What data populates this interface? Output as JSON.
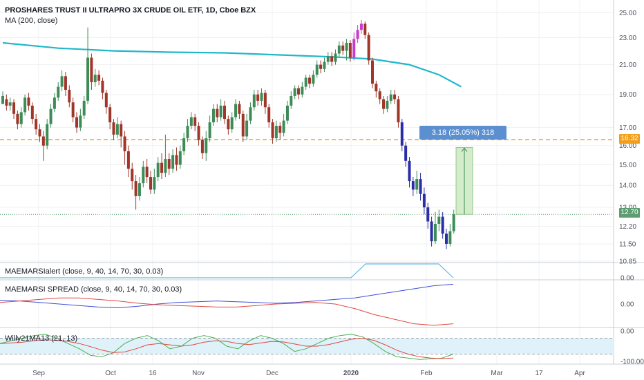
{
  "header": {
    "title": "PROSHARES TRUST II ULTRAPRO 3X CRUDE OIL ETF, 1D, Cboe BZX",
    "ma_label": "MA (200, close)"
  },
  "colors": {
    "up": "#3d8c57",
    "down": "#a0352a",
    "highlight_up": "#c83dc8",
    "highlight_down": "#2a2fa8",
    "ma": "#20b7c9",
    "level_line": "#f29f1c",
    "measure_fill": "#d4ecc9",
    "measure_label": "#5b8fd0",
    "current_price_badge": "#5e9c72",
    "level_badge": "#f29f1c"
  },
  "price_axis": {
    "ticks": [
      "25.00",
      "23.00",
      "21.00",
      "19.00",
      "17.00",
      "16.00",
      "15.00",
      "14.00",
      "13.00",
      "12.20",
      "11.50",
      "10.85"
    ],
    "level_badge": "16.32",
    "current_badge": "12.70",
    "scale": "log"
  },
  "time_axis": {
    "labels": [
      "Sep",
      "Oct",
      "16",
      "Nov",
      "Dec",
      "2020",
      "Feb",
      "Mar",
      "17",
      "Apr"
    ]
  },
  "measure": {
    "label": "3.18 (25.05%) 318"
  },
  "panes": {
    "alert": {
      "label": "MAEMARSIalert (close, 9, 40, 14, 70, 30, 0.03)",
      "tick": "0.00"
    },
    "spread": {
      "label": "MAEMARSI SPREAD (close, 9, 40, 14, 70, 30, 0.03)",
      "tick": "0.00"
    },
    "willy": {
      "label": "Willy21MA13 (21, 13)",
      "ticks": [
        "0.00",
        "-100.00"
      ]
    }
  },
  "chart_data": [
    {
      "type": "candlestick",
      "title": "PROSHARES TRUST II ULTRAPRO 3X CRUDE OIL ETF, 1D, Cboe BZX",
      "y_scale": "log",
      "ylim": [
        10.85,
        25.5
      ],
      "x_labels": [
        "Sep",
        "Oct",
        "16",
        "Nov",
        "Dec",
        "2020",
        "Feb",
        "Mar",
        "17",
        "Apr"
      ],
      "candles": [
        [
          18.4,
          18.9,
          18.6,
          19.2
        ],
        [
          18.7,
          18.3,
          19.0,
          18.0
        ],
        [
          18.3,
          18.5,
          18.8,
          18.0
        ],
        [
          18.5,
          17.8,
          18.7,
          17.5
        ],
        [
          17.8,
          17.2,
          18.0,
          16.9
        ],
        [
          17.2,
          17.9,
          18.2,
          17.0
        ],
        [
          17.9,
          18.8,
          19.0,
          17.7
        ],
        [
          18.8,
          18.3,
          19.1,
          18.0
        ],
        [
          18.3,
          17.5,
          18.5,
          17.2
        ],
        [
          17.5,
          16.9,
          17.8,
          16.6
        ],
        [
          16.9,
          16.5,
          17.2,
          16.2
        ],
        [
          16.5,
          16.0,
          16.8,
          15.2
        ],
        [
          16.0,
          17.2,
          17.5,
          15.8
        ],
        [
          17.2,
          18.1,
          18.4,
          17.0
        ],
        [
          18.1,
          18.8,
          19.1,
          17.9
        ],
        [
          18.8,
          19.5,
          19.8,
          18.6
        ],
        [
          19.5,
          20.2,
          20.6,
          19.2
        ],
        [
          20.2,
          19.3,
          20.5,
          18.9
        ],
        [
          19.3,
          18.5,
          19.6,
          18.2
        ],
        [
          18.5,
          17.6,
          18.8,
          17.3
        ],
        [
          17.6,
          17.0,
          17.9,
          16.7
        ],
        [
          17.0,
          17.7,
          18.1,
          16.8
        ],
        [
          17.7,
          18.6,
          18.9,
          17.5
        ],
        [
          18.6,
          21.5,
          23.8,
          18.4
        ],
        [
          21.5,
          19.8,
          21.8,
          19.3
        ],
        [
          19.8,
          20.3,
          20.7,
          19.5
        ],
        [
          20.3,
          19.9,
          20.6,
          19.6
        ],
        [
          19.9,
          19.1,
          20.1,
          18.7
        ],
        [
          19.1,
          18.2,
          19.3,
          17.8
        ],
        [
          18.2,
          17.3,
          18.4,
          16.9
        ],
        [
          17.3,
          16.6,
          17.5,
          16.3
        ],
        [
          16.6,
          17.2,
          17.6,
          16.4
        ],
        [
          17.2,
          16.5,
          17.4,
          15.9
        ],
        [
          16.5,
          15.7,
          16.8,
          15.0
        ],
        [
          15.7,
          14.8,
          16.0,
          14.4
        ],
        [
          14.8,
          14.2,
          15.1,
          13.8
        ],
        [
          14.2,
          13.5,
          14.5,
          12.9
        ],
        [
          13.5,
          14.1,
          14.4,
          13.3
        ],
        [
          14.1,
          14.9,
          15.2,
          13.9
        ],
        [
          14.9,
          14.4,
          15.3,
          14.1
        ],
        [
          14.4,
          13.8,
          14.7,
          13.6
        ],
        [
          13.8,
          14.4,
          14.8,
          13.6
        ],
        [
          14.4,
          15.1,
          15.4,
          14.2
        ],
        [
          15.1,
          14.6,
          15.6,
          14.3
        ],
        [
          14.6,
          15.3,
          16.6,
          14.4
        ],
        [
          15.3,
          14.8,
          15.6,
          14.5
        ],
        [
          14.8,
          15.5,
          15.8,
          14.6
        ],
        [
          15.5,
          15.0,
          15.9,
          14.7
        ],
        [
          15.0,
          15.7,
          16.0,
          14.8
        ],
        [
          15.7,
          16.4,
          16.7,
          15.5
        ],
        [
          16.4,
          17.1,
          17.5,
          16.2
        ],
        [
          17.1,
          17.6,
          17.9,
          16.9
        ],
        [
          17.6,
          17.1,
          17.8,
          16.8
        ],
        [
          17.1,
          16.3,
          17.3,
          16.0
        ],
        [
          16.3,
          15.6,
          16.5,
          15.3
        ],
        [
          15.6,
          16.4,
          16.8,
          15.2
        ],
        [
          16.4,
          17.3,
          17.7,
          16.2
        ],
        [
          17.3,
          18.1,
          18.4,
          17.1
        ],
        [
          18.1,
          17.6,
          18.4,
          17.3
        ],
        [
          17.6,
          18.3,
          18.7,
          17.4
        ],
        [
          18.3,
          17.5,
          18.6,
          17.2
        ],
        [
          17.5,
          16.9,
          17.7,
          16.6
        ],
        [
          16.9,
          17.6,
          17.9,
          16.7
        ],
        [
          17.6,
          18.4,
          18.7,
          17.4
        ],
        [
          18.4,
          17.8,
          18.6,
          17.5
        ],
        [
          17.8,
          16.5,
          18.0,
          16.2
        ],
        [
          16.5,
          17.4,
          17.8,
          16.3
        ],
        [
          17.4,
          18.2,
          18.5,
          17.2
        ],
        [
          18.2,
          19.0,
          19.3,
          18.0
        ],
        [
          19.0,
          18.6,
          19.3,
          18.3
        ],
        [
          18.6,
          19.1,
          19.4,
          18.3
        ],
        [
          19.1,
          18.2,
          19.3,
          17.8
        ],
        [
          18.2,
          17.3,
          18.4,
          17.0
        ],
        [
          17.3,
          16.4,
          17.5,
          16.1
        ],
        [
          16.4,
          17.1,
          17.4,
          16.2
        ],
        [
          17.1,
          16.7,
          17.3,
          16.3
        ],
        [
          16.7,
          17.4,
          17.8,
          16.5
        ],
        [
          17.4,
          18.3,
          18.6,
          17.2
        ],
        [
          18.3,
          18.9,
          19.2,
          18.1
        ],
        [
          18.9,
          19.4,
          19.6,
          18.7
        ],
        [
          19.4,
          19.0,
          19.6,
          18.7
        ],
        [
          19.0,
          19.5,
          19.8,
          18.8
        ],
        [
          19.5,
          20.1,
          20.3,
          19.3
        ],
        [
          20.1,
          19.7,
          20.3,
          19.4
        ],
        [
          19.7,
          20.3,
          20.6,
          19.5
        ],
        [
          20.3,
          21.0,
          21.3,
          20.1
        ],
        [
          21.0,
          20.7,
          21.3,
          20.4
        ],
        [
          20.7,
          21.2,
          21.5,
          20.5
        ],
        [
          21.2,
          21.6,
          21.9,
          21.0
        ],
        [
          21.6,
          21.2,
          21.9,
          20.9
        ],
        [
          21.2,
          21.8,
          22.1,
          21.0
        ],
        [
          21.8,
          22.4,
          22.7,
          21.6
        ],
        [
          22.4,
          22.0,
          22.7,
          21.7
        ],
        [
          22.0,
          22.6,
          22.9,
          21.3
        ],
        [
          22.6,
          21.5,
          22.8,
          21.2
        ],
        [
          21.5,
          22.9,
          23.4,
          21.3
        ],
        [
          22.9,
          23.6,
          24.0,
          22.6
        ],
        [
          23.6,
          24.1,
          24.4,
          23.3
        ],
        [
          24.1,
          23.2,
          24.3,
          22.9
        ],
        [
          23.2,
          21.3,
          23.4,
          21.0
        ],
        [
          21.3,
          19.7,
          21.5,
          19.4
        ],
        [
          19.7,
          19.2,
          19.9,
          18.8
        ],
        [
          19.2,
          18.7,
          19.4,
          18.4
        ],
        [
          18.7,
          18.1,
          18.9,
          17.8
        ],
        [
          18.1,
          18.6,
          18.9,
          17.9
        ],
        [
          18.6,
          19.0,
          19.3,
          18.4
        ],
        [
          19.0,
          18.7,
          19.3,
          18.4
        ],
        [
          18.7,
          17.3,
          18.9,
          17.0
        ],
        [
          17.3,
          16.0,
          17.5,
          15.7
        ],
        [
          16.0,
          15.2,
          16.2,
          14.9
        ],
        [
          15.2,
          14.2,
          15.4,
          13.9
        ],
        [
          14.2,
          13.8,
          14.4,
          13.5
        ],
        [
          13.8,
          14.3,
          14.7,
          13.6
        ],
        [
          14.3,
          13.6,
          14.6,
          13.3
        ],
        [
          13.6,
          13.0,
          13.9,
          12.7
        ],
        [
          13.0,
          12.4,
          13.2,
          12.1
        ],
        [
          12.4,
          11.6,
          12.6,
          11.4
        ],
        [
          11.6,
          12.3,
          12.8,
          11.5
        ],
        [
          12.3,
          12.6,
          12.9,
          12.0
        ],
        [
          12.6,
          11.9,
          12.8,
          11.7
        ],
        [
          11.9,
          11.5,
          12.1,
          11.3
        ],
        [
          11.5,
          12.0,
          12.3,
          11.4
        ],
        [
          12.0,
          12.7,
          12.9,
          11.9
        ]
      ],
      "ma_200": [
        [
          0,
          22.6
        ],
        [
          15,
          22.2
        ],
        [
          30,
          22.0
        ],
        [
          45,
          21.9
        ],
        [
          60,
          21.85
        ],
        [
          75,
          21.7
        ],
        [
          90,
          21.55
        ],
        [
          100,
          21.4
        ],
        [
          110,
          21.0
        ],
        [
          118,
          20.3
        ],
        [
          124,
          19.5
        ]
      ],
      "level_line": 16.32,
      "current_price": 12.7,
      "measure": {
        "from": 12.7,
        "to": 15.9,
        "label": "3.18 (25.05%) 318"
      }
    },
    {
      "type": "line",
      "title": "MAEMARSIalert (close, 9, 40, 14, 70, 30, 0.03)",
      "series": [
        {
          "values": [
            0,
            0,
            0,
            0,
            0,
            0,
            0,
            0,
            0,
            0,
            0,
            0,
            0,
            0,
            0,
            0,
            0,
            0,
            0,
            0,
            0,
            0,
            0,
            0,
            0,
            1,
            1,
            1,
            1,
            1,
            1,
            0
          ]
        }
      ]
    },
    {
      "type": "line",
      "title": "MAEMARSI SPREAD (close, 9, 40, 14, 70, 30, 0.03)",
      "series": [
        {
          "values": [
            0.25,
            0.2,
            0.1,
            0.0,
            -0.1,
            -0.2,
            -0.25,
            -0.15,
            0.0,
            0.1,
            0.15,
            0.2,
            0.15,
            0.1,
            0.05,
            0.1,
            0.2,
            0.3,
            0.4,
            0.6,
            0.8,
            1.0,
            1.2,
            1.3
          ]
        },
        {
          "values": [
            0.1,
            0.2,
            0.3,
            0.4,
            0.4,
            0.3,
            0.2,
            0.05,
            -0.05,
            -0.1,
            -0.15,
            -0.2,
            -0.2,
            -0.1,
            0.0,
            0.05,
            0.1,
            0.0,
            -0.3,
            -0.7,
            -1.0,
            -1.3,
            -1.4,
            -1.3
          ]
        }
      ]
    },
    {
      "type": "line",
      "title": "Willy21MA13 (21, 13)",
      "ylim": [
        -110,
        10
      ],
      "series": [
        {
          "values": [
            -40,
            -30,
            -20,
            -10,
            -5,
            -20,
            -40,
            -60,
            -85,
            -90,
            -75,
            -40,
            -20,
            -10,
            -30,
            -60,
            -50,
            -20,
            -10,
            -20,
            -50,
            -60,
            -30,
            -10,
            -20,
            -40,
            -70,
            -60,
            -40,
            -20,
            -10,
            -5,
            -15,
            -40,
            -70,
            -90,
            -95,
            -100,
            -98,
            -95,
            -80
          ]
        },
        {
          "values": [
            -40,
            -38,
            -35,
            -30,
            -26,
            -28,
            -32,
            -40,
            -52,
            -65,
            -74,
            -72,
            -60,
            -45,
            -40,
            -45,
            -50,
            -45,
            -35,
            -30,
            -32,
            -40,
            -44,
            -38,
            -32,
            -34,
            -42,
            -50,
            -50,
            -44,
            -34,
            -24,
            -20,
            -28,
            -45,
            -65,
            -80,
            -90,
            -95,
            -97,
            -95
          ]
        }
      ]
    }
  ]
}
